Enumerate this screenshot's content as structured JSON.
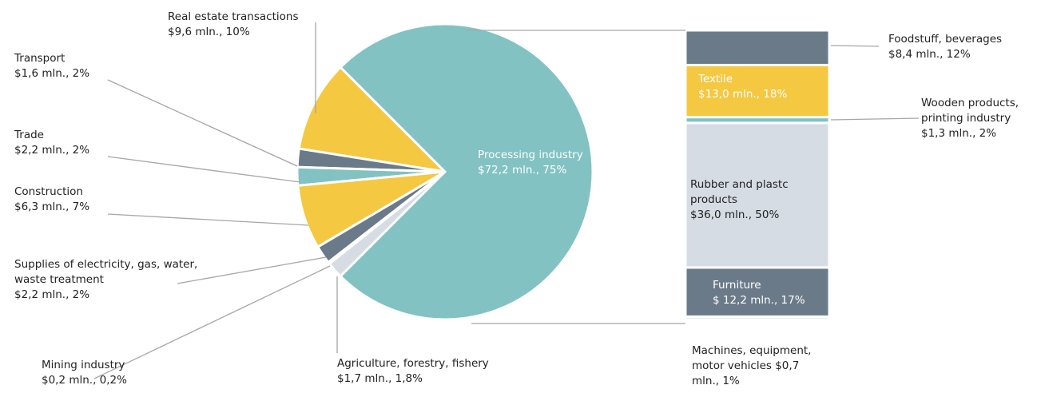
{
  "chart_data": [
    {
      "type": "pie",
      "categories": [
        "Processing industry",
        "Agriculture, forestry, fishery",
        "Mining industry",
        "Supplies of electricity, gas, water, waste treatment",
        "Construction",
        "Trade",
        "Transport",
        "Real estate transactions"
      ],
      "values": [
        75,
        1.8,
        0.2,
        2,
        7,
        2,
        2,
        10
      ],
      "value_labels": [
        "$72,2 mln., 75%",
        "$1,7 mln., 1,8%",
        "$0,2 mln., 0,2%",
        "$2,2 mln., 2%",
        "$6,3 mln., 7%",
        "$2,2 mln., 2%",
        "$1,6 mln., 2%",
        "$9,6 mln., 10%"
      ],
      "colors": [
        "#82c2c3",
        "#d6dce4",
        "#82c2c3",
        "#6b7a89",
        "#f5c842",
        "#82c2c3",
        "#6b7a89",
        "#f5c842"
      ]
    },
    {
      "type": "bar",
      "categories": [
        "Foodstuff, beverages",
        "Textile",
        "Wooden products, printing industry",
        "Rubber and plastc products",
        "Furniture",
        "Machines, equipment, motor vehicles"
      ],
      "values": [
        12,
        18,
        2,
        50,
        17,
        1
      ],
      "value_labels": [
        "$8,4 mln., 12%",
        "$13,0 mln., 18%",
        "$1,3 mln., 2%",
        "$36,0 mln., 50%",
        "$ 12,2 mln., 17%",
        "$0,7 mln., 1%"
      ],
      "colors": [
        "#6b7a89",
        "#f5c842",
        "#82c2c3",
        "#d6dce4",
        "#6b7a89",
        "#d6dce4"
      ]
    }
  ]
}
